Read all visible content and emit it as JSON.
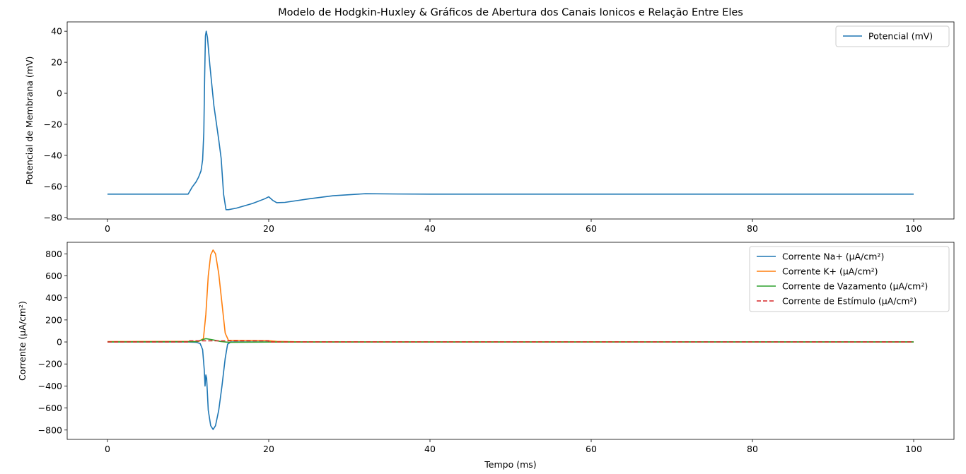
{
  "title": "Modelo de Hodgkin-Huxley & Gráficos de Abertura dos Canais Ionicos e Relação Entre Eles",
  "colors": {
    "blue": "#1f77b4",
    "orange": "#ff7f0e",
    "green": "#2ca02c",
    "red": "#d62728"
  },
  "chart_data": [
    {
      "type": "line",
      "xlabel": "",
      "ylabel": "Potencial de Membrana (mV)",
      "xlim": [
        -5,
        105
      ],
      "ylim": [
        -81,
        46
      ],
      "xticks": [
        0,
        20,
        40,
        60,
        80,
        100
      ],
      "yticks": [
        -80,
        -60,
        -40,
        -20,
        0,
        20,
        40
      ],
      "legend_position": "top-right",
      "series": [
        {
          "name": "Potencial (mV)",
          "color": "#1f77b4",
          "style": "solid",
          "points": [
            [
              0,
              -65
            ],
            [
              10,
              -65
            ],
            [
              10.5,
              -60.5
            ],
            [
              11,
              -57
            ],
            [
              11.3,
              -54
            ],
            [
              11.6,
              -50
            ],
            [
              11.8,
              -43
            ],
            [
              11.95,
              -25
            ],
            [
              12.05,
              10
            ],
            [
              12.15,
              37
            ],
            [
              12.25,
              40
            ],
            [
              12.4,
              36
            ],
            [
              12.7,
              18
            ],
            [
              13.2,
              -8
            ],
            [
              13.8,
              -30
            ],
            [
              14.1,
              -42
            ],
            [
              14.4,
              -65
            ],
            [
              14.7,
              -75
            ],
            [
              15,
              -75
            ],
            [
              16,
              -74
            ],
            [
              18,
              -71
            ],
            [
              19.5,
              -68
            ],
            [
              20,
              -66.7
            ],
            [
              20.5,
              -69
            ],
            [
              21,
              -70.5
            ],
            [
              22,
              -70.3
            ],
            [
              25,
              -68
            ],
            [
              28,
              -66
            ],
            [
              32,
              -64.7
            ],
            [
              36,
              -64.9
            ],
            [
              40,
              -65
            ],
            [
              100,
              -65
            ]
          ]
        }
      ]
    },
    {
      "type": "line",
      "xlabel": "Tempo (ms)",
      "ylabel": "Corrente (µA/cm²)",
      "xlim": [
        -5,
        105
      ],
      "ylim": [
        -885,
        905
      ],
      "xticks": [
        0,
        20,
        40,
        60,
        80,
        100
      ],
      "yticks": [
        -800,
        -600,
        -400,
        -200,
        0,
        200,
        400,
        600,
        800
      ],
      "legend_position": "top-right",
      "series": [
        {
          "name": "Corrente Na+ (µA/cm²)",
          "color": "#1f77b4",
          "style": "solid",
          "points": [
            [
              0,
              0
            ],
            [
              10,
              0
            ],
            [
              11,
              -3
            ],
            [
              11.5,
              -15
            ],
            [
              11.8,
              -70
            ],
            [
              12,
              -250
            ],
            [
              12.1,
              -400
            ],
            [
              12.2,
              -300
            ],
            [
              12.3,
              -330
            ],
            [
              12.5,
              -620
            ],
            [
              12.8,
              -760
            ],
            [
              13.1,
              -795
            ],
            [
              13.4,
              -760
            ],
            [
              13.8,
              -620
            ],
            [
              14.2,
              -400
            ],
            [
              14.6,
              -150
            ],
            [
              14.9,
              -20
            ],
            [
              15.3,
              0
            ],
            [
              100,
              0
            ]
          ]
        },
        {
          "name": "Corrente K+ (µA/cm²)",
          "color": "#ff7f0e",
          "style": "solid",
          "points": [
            [
              0,
              3
            ],
            [
              11.3,
              5
            ],
            [
              11.9,
              30
            ],
            [
              12.2,
              250
            ],
            [
              12.5,
              600
            ],
            [
              12.8,
              790
            ],
            [
              13.1,
              835
            ],
            [
              13.4,
              800
            ],
            [
              13.8,
              620
            ],
            [
              14.2,
              350
            ],
            [
              14.6,
              80
            ],
            [
              15,
              15
            ],
            [
              17,
              14
            ],
            [
              20,
              11
            ],
            [
              21,
              5
            ],
            [
              24,
              1
            ],
            [
              100,
              0
            ]
          ]
        },
        {
          "name": "Corrente de Vazamento (µA/cm²)",
          "color": "#2ca02c",
          "style": "solid",
          "points": [
            [
              0,
              0
            ],
            [
              11,
              2
            ],
            [
              12.2,
              30
            ],
            [
              13,
              20
            ],
            [
              14,
              5
            ],
            [
              15,
              -3
            ],
            [
              20,
              -1
            ],
            [
              22,
              -1
            ],
            [
              100,
              0
            ]
          ]
        },
        {
          "name": "Corrente de Estímulo (µA/cm²)",
          "color": "#d62728",
          "style": "dashed",
          "points": [
            [
              0,
              0
            ],
            [
              10,
              0
            ],
            [
              10,
              10
            ],
            [
              20,
              10
            ],
            [
              20,
              0
            ],
            [
              100,
              0
            ]
          ]
        }
      ]
    }
  ]
}
